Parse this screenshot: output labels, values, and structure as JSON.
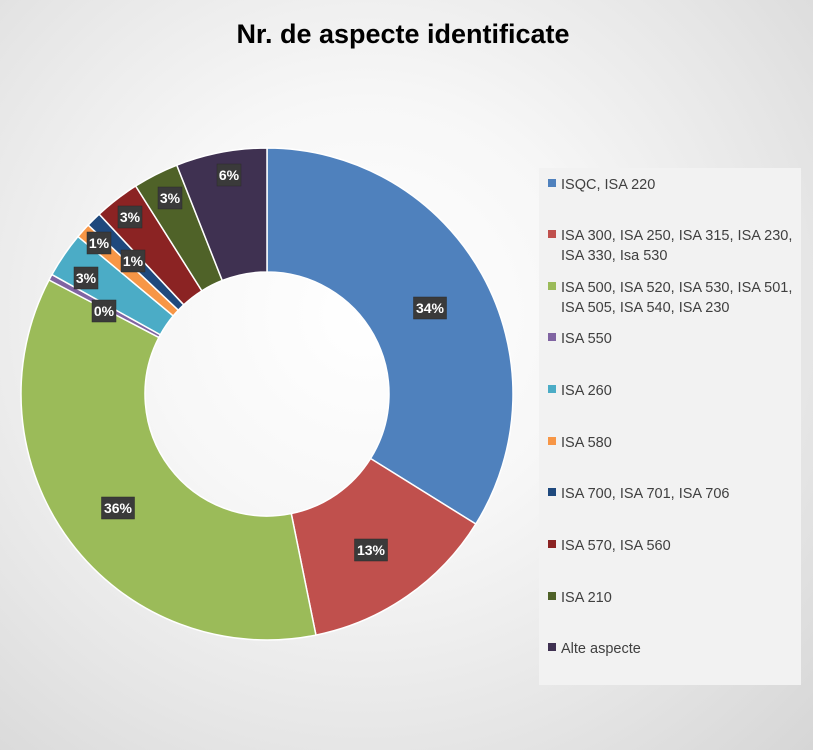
{
  "chart_data": {
    "type": "pie",
    "variant": "doughnut",
    "title": "Nr. de aspecte identificate",
    "legend_position": "right",
    "slices": [
      {
        "label": [
          "ISQC, ISA 220"
        ],
        "value": 34,
        "data_label": "34%",
        "color": "#4F81BD"
      },
      {
        "label": [
          "ISA 300, ISA 250, ISA 315, ISA 230,",
          "ISA 330, Isa 530"
        ],
        "value": 13,
        "data_label": "13%",
        "color": "#C0504D"
      },
      {
        "label": [
          "ISA 500, ISA 520, ISA 530, ISA 501,",
          "ISA 505, ISA 540, ISA 230"
        ],
        "value": 36,
        "data_label": "36%",
        "color": "#9BBB59"
      },
      {
        "label": [
          "ISA 550"
        ],
        "value": 0.4,
        "data_label": "0%",
        "color": "#8064A2"
      },
      {
        "label": [
          "ISA 260"
        ],
        "value": 3,
        "data_label": "3%",
        "color": "#4BACC6"
      },
      {
        "label": [
          "ISA 580"
        ],
        "value": 1,
        "data_label": "1%",
        "color": "#F79646"
      },
      {
        "label": [
          "ISA 700, ISA 701, ISA 706"
        ],
        "value": 1,
        "data_label": "1%",
        "color": "#1F497D"
      },
      {
        "label": [
          "ISA 570, ISA 560"
        ],
        "value": 3,
        "data_label": "3%",
        "color": "#8B2323"
      },
      {
        "label": [
          "ISA 210"
        ],
        "value": 3,
        "data_label": "3%",
        "color": "#4F6228"
      },
      {
        "label": [
          "Alte aspecte"
        ],
        "value": 6,
        "data_label": "6%",
        "color": "#3F3151"
      }
    ]
  }
}
